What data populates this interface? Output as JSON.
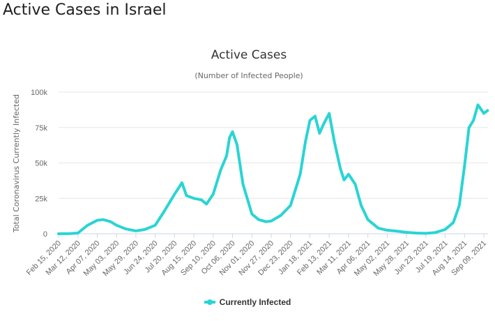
{
  "page": {
    "title": "Active Cases in Israel"
  },
  "legend": {
    "label": "Currently Infected"
  },
  "colors": {
    "series": "#2ad4d4",
    "grid": "#e6e6e6",
    "axis_text": "#666666"
  },
  "chart_data": {
    "type": "line",
    "title": "Active Cases",
    "subtitle": "(Number of Infected People)",
    "ylabel": "Total Coronavirus Currently Infected",
    "xlabel": "",
    "ylim": [
      0,
      100000
    ],
    "yticks": [
      0,
      25000,
      50000,
      75000,
      100000
    ],
    "ytick_labels": [
      "0",
      "25k",
      "50k",
      "75k",
      "100k"
    ],
    "xtick_labels": [
      "Feb 15, 2020",
      "Mar 12, 2020",
      "Apr 07, 2020",
      "May 03, 2020",
      "May 29, 2020",
      "Jun 24, 2020",
      "Jul 20, 2020",
      "Aug 15, 2020",
      "Sep 10, 2020",
      "Oct 06, 2020",
      "Nov 01, 2020",
      "Nov 27, 2020",
      "Dec 23, 2020",
      "Jan 18, 2021",
      "Feb 13, 2021",
      "Mar 11, 2021",
      "Apr 06, 2021",
      "May 02, 2021",
      "May 28, 2021",
      "Jun 23, 2021",
      "Jul 19, 2021",
      "Aug 14, 2021",
      "Sep 09, 2021"
    ],
    "grid": true,
    "legend_position": "bottom-center",
    "series": [
      {
        "name": "Currently Infected",
        "x": [
          "Feb 15, 2020",
          "Mar 01, 2020",
          "Mar 12, 2020",
          "Mar 25, 2020",
          "Apr 07, 2020",
          "Apr 15, 2020",
          "Apr 25, 2020",
          "May 03, 2020",
          "May 15, 2020",
          "May 29, 2020",
          "Jun 10, 2020",
          "Jun 24, 2020",
          "Jul 05, 2020",
          "Jul 20, 2020",
          "Jul 30, 2020",
          "Aug 05, 2020",
          "Aug 10, 2020",
          "Aug 15, 2020",
          "Aug 25, 2020",
          "Sep 01, 2020",
          "Sep 10, 2020",
          "Sep 20, 2020",
          "Sep 28, 2020",
          "Oct 02, 2020",
          "Oct 06, 2020",
          "Oct 12, 2020",
          "Oct 20, 2020",
          "Nov 01, 2020",
          "Nov 10, 2020",
          "Nov 20, 2020",
          "Nov 27, 2020",
          "Dec 10, 2020",
          "Dec 23, 2020",
          "Jan 05, 2021",
          "Jan 12, 2021",
          "Jan 18, 2021",
          "Jan 25, 2021",
          "Jan 31, 2021",
          "Feb 06, 2021",
          "Feb 13, 2021",
          "Feb 20, 2021",
          "Feb 28, 2021",
          "Mar 05, 2021",
          "Mar 11, 2021",
          "Mar 20, 2021",
          "Mar 28, 2021",
          "Apr 06, 2021",
          "Apr 20, 2021",
          "May 02, 2021",
          "May 15, 2021",
          "May 28, 2021",
          "Jun 10, 2021",
          "Jun 23, 2021",
          "Jul 05, 2021",
          "Jul 19, 2021",
          "Jul 30, 2021",
          "Aug 07, 2021",
          "Aug 14, 2021",
          "Aug 20, 2021",
          "Aug 26, 2021",
          "Sep 01, 2021",
          "Sep 09, 2021",
          "Sep 14, 2021"
        ],
        "values": [
          0,
          100,
          500,
          6000,
          9500,
          10000,
          8500,
          6000,
          3500,
          2000,
          3000,
          6000,
          15000,
          28000,
          36000,
          27000,
          26000,
          25000,
          24000,
          21000,
          28000,
          45000,
          55000,
          68000,
          72000,
          63000,
          35000,
          14000,
          10000,
          8500,
          9000,
          13000,
          20000,
          42000,
          65000,
          80000,
          83000,
          71000,
          78000,
          85000,
          65000,
          46000,
          38000,
          42000,
          35000,
          20000,
          10000,
          4000,
          2500,
          1800,
          1000,
          500,
          300,
          800,
          3000,
          8000,
          20000,
          48000,
          75000,
          80000,
          91000,
          85000,
          87000
        ]
      }
    ]
  }
}
